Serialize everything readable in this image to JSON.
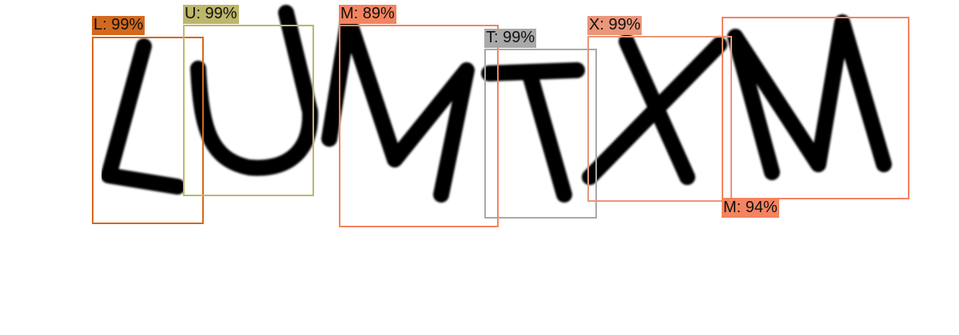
{
  "detections": [
    {
      "letter": "L",
      "label": "L: 99%",
      "color": "#d2691e",
      "label_pos": "top"
    },
    {
      "letter": "U",
      "label": "U: 99%",
      "color": "#bdb76b",
      "label_pos": "top"
    },
    {
      "letter": "M",
      "label": "M: 89%",
      "color": "#f4845f",
      "label_pos": "top"
    },
    {
      "letter": "T",
      "label": "T: 99%",
      "color": "#a9a9a9",
      "label_pos": "top"
    },
    {
      "letter": "X",
      "label": "X: 99%",
      "color": "#e9967a",
      "label_pos": "top"
    },
    {
      "letter": "M",
      "label": "M: 94%",
      "color": "#f4845f",
      "label_pos": "bottom"
    }
  ]
}
